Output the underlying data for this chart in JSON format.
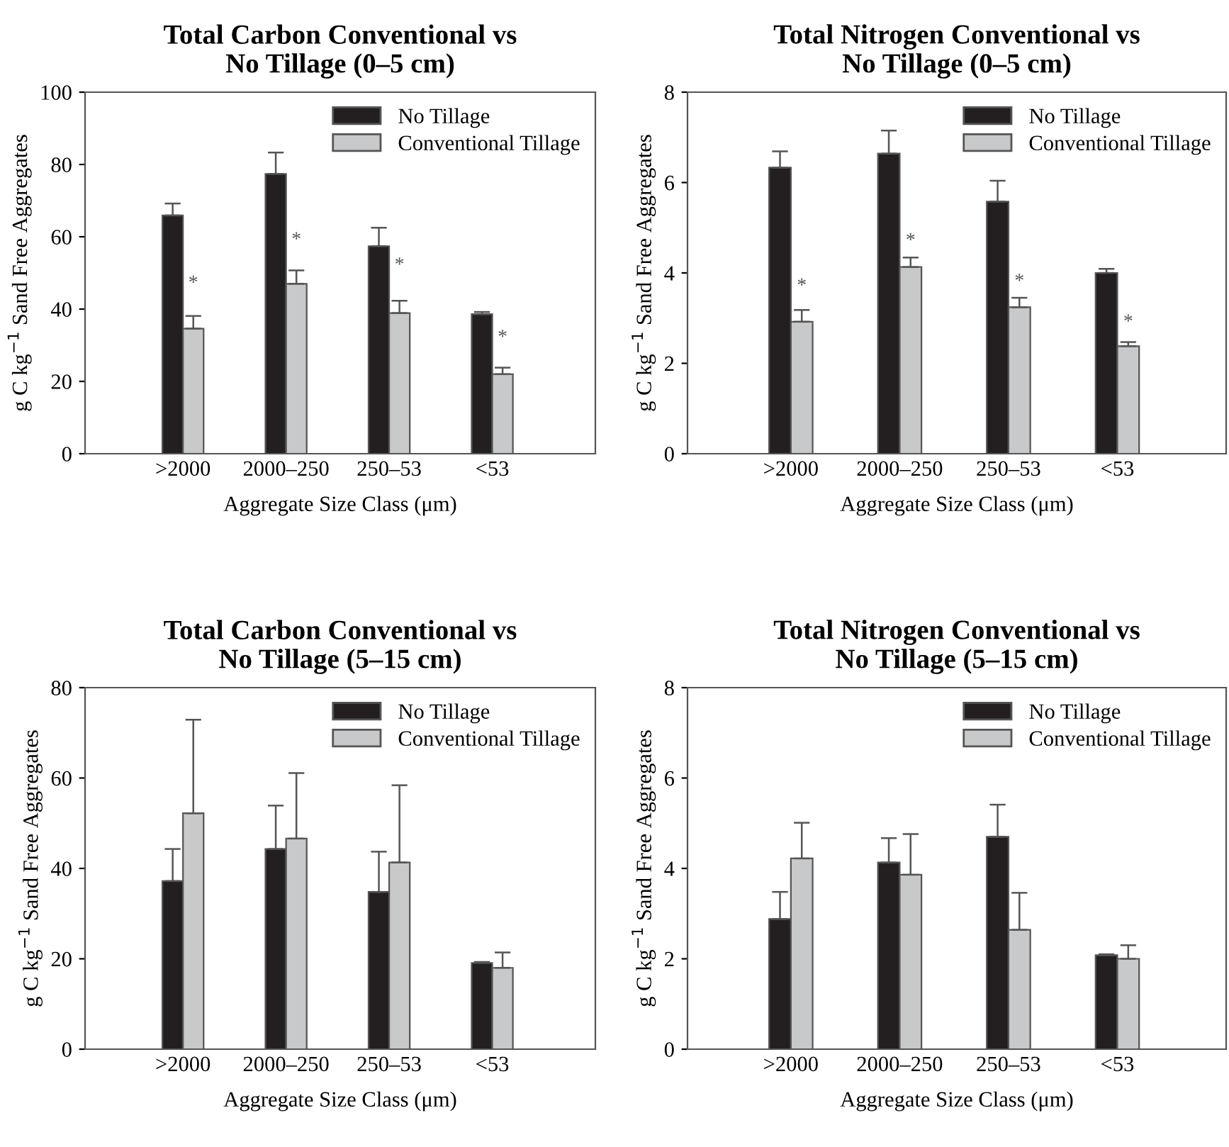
{
  "chart_data": [
    {
      "type": "bar",
      "title": "Total Carbon Conventional vs\nNo Tillage (0–5 cm)",
      "xlabel": "Aggregate Size Class (μm)",
      "ylabel": "g C kg$^{−1}$ Sand Free Aggregates",
      "categories": [
        ">2000",
        "2000–250",
        "250–53",
        "<53"
      ],
      "ylim": [
        0,
        100
      ],
      "yticks": [
        0,
        20,
        40,
        60,
        80,
        100
      ],
      "grid": false,
      "legend": "top right",
      "series": [
        {
          "name": "No Tillage",
          "color": "#231f20",
          "values": [
            65.9,
            77.4,
            57.4,
            38.6
          ],
          "errors": [
            [
              65.9,
              69.2
            ],
            [
              77.4,
              83.3
            ],
            [
              57.4,
              62.5
            ],
            [
              38.6,
              39.2
            ]
          ]
        },
        {
          "name": "Conventional Tillage",
          "color": "#c8c9cb",
          "values": [
            34.6,
            47.0,
            38.9,
            22.0
          ],
          "errors": [
            [
              34.6,
              38.1
            ],
            [
              47.0,
              50.7
            ],
            [
              38.9,
              42.3
            ],
            [
              22.0,
              23.8
            ]
          ]
        }
      ],
      "annotations": [
        {
          "text": "*",
          "x": ">2000",
          "y": 47
        },
        {
          "text": "*",
          "x": "2000–250",
          "y": 59
        },
        {
          "text": "*",
          "x": "250–53",
          "y": 52
        },
        {
          "text": "*",
          "x": "<53",
          "y": 32
        }
      ]
    },
    {
      "type": "bar",
      "title": "Total Nitrogen Conventional vs\nNo Tillage (0–5 cm)",
      "xlabel": "Aggregate Size Class (μm)",
      "ylabel": "g C kg$^{−1}$ Sand Free Aggregates",
      "categories": [
        ">2000",
        "2000–250",
        "250–53",
        "<53"
      ],
      "ylim": [
        0,
        8
      ],
      "yticks": [
        0,
        2,
        4,
        6,
        8
      ],
      "grid": false,
      "legend": "top right",
      "series": [
        {
          "name": "No Tillage",
          "color": "#231f20",
          "values": [
            6.33,
            6.64,
            5.58,
            4.0
          ],
          "errors": [
            [
              6.33,
              6.69
            ],
            [
              6.64,
              7.15
            ],
            [
              5.58,
              6.04
            ],
            [
              4.0,
              4.09
            ]
          ]
        },
        {
          "name": "Conventional Tillage",
          "color": "#c8c9cb",
          "values": [
            2.92,
            4.13,
            3.24,
            2.38
          ],
          "errors": [
            [
              2.92,
              3.18
            ],
            [
              4.13,
              4.34
            ],
            [
              3.24,
              3.45
            ],
            [
              2.38,
              2.47
            ]
          ]
        }
      ],
      "annotations": [
        {
          "text": "*",
          "x": ">2000",
          "y": 3.7
        },
        {
          "text": "*",
          "x": "2000–250",
          "y": 4.7
        },
        {
          "text": "*",
          "x": "250–53",
          "y": 3.8
        },
        {
          "text": "*",
          "x": "<53",
          "y": 2.9
        }
      ]
    },
    {
      "type": "bar",
      "title": "Total Carbon Conventional vs\nNo Tillage (5–15 cm)",
      "xlabel": "Aggregate Size Class (μm)",
      "ylabel": "g C kg$^{−1}$ Sand Free Aggregates",
      "categories": [
        ">2000",
        "2000–250",
        "250–53",
        "<53"
      ],
      "ylim": [
        0,
        80
      ],
      "yticks": [
        0,
        20,
        40,
        60,
        80
      ],
      "grid": false,
      "legend": "top right",
      "series": [
        {
          "name": "No Tillage",
          "color": "#231f20",
          "values": [
            37.2,
            44.3,
            34.8,
            19.1
          ],
          "errors": [
            [
              37.2,
              44.3
            ],
            [
              44.3,
              53.9
            ],
            [
              34.8,
              43.7
            ],
            [
              19.1,
              19.3
            ]
          ]
        },
        {
          "name": "Conventional Tillage",
          "color": "#c8c9cb",
          "values": [
            52.2,
            46.6,
            41.3,
            18.0
          ],
          "errors": [
            [
              52.2,
              72.9
            ],
            [
              46.6,
              61.1
            ],
            [
              41.3,
              58.4
            ],
            [
              18.0,
              21.4
            ]
          ]
        }
      ]
    },
    {
      "type": "bar",
      "title": "Total Nitrogen Conventional vs\nNo Tillage (5–15 cm)",
      "xlabel": "Aggregate Size Class (μm)",
      "ylabel": "g C kg$^{−1}$ Sand Free Aggregates",
      "categories": [
        ">2000",
        "2000–250",
        "250–53",
        "<53"
      ],
      "ylim": [
        0,
        8
      ],
      "yticks": [
        0,
        2,
        4,
        6,
        8
      ],
      "grid": false,
      "legend": "top right",
      "series": [
        {
          "name": "No Tillage",
          "color": "#231f20",
          "values": [
            2.88,
            4.13,
            4.7,
            2.08
          ],
          "errors": [
            [
              2.88,
              3.48
            ],
            [
              4.13,
              4.67
            ],
            [
              4.7,
              5.41
            ],
            [
              2.08,
              2.1
            ]
          ]
        },
        {
          "name": "Conventional Tillage",
          "color": "#c8c9cb",
          "values": [
            4.22,
            3.86,
            2.64,
            2.0
          ],
          "errors": [
            [
              4.22,
              5.01
            ],
            [
              3.86,
              4.76
            ],
            [
              2.64,
              3.46
            ],
            [
              2.0,
              2.3
            ]
          ]
        }
      ]
    }
  ]
}
